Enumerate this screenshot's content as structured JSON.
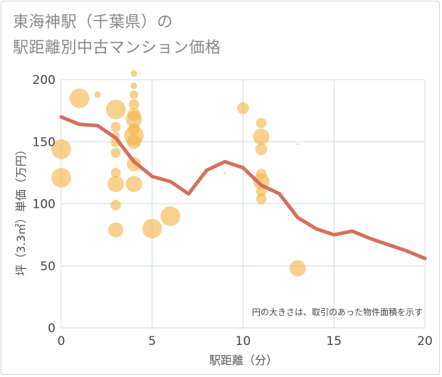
{
  "title_line1": "東海神駅（千葉県）の",
  "title_line2": "駅距離別中古マンション価格",
  "chart_data": {
    "type": "scatter",
    "title": "東海神駅（千葉県）の駅距離別中古マンション価格",
    "xlabel": "駅距離（分）",
    "ylabel": "坪（3.3㎡）単価（万円）",
    "xlim": [
      0,
      20
    ],
    "ylim": [
      0,
      200
    ],
    "x_ticks": [
      0,
      5,
      10,
      15,
      20
    ],
    "y_ticks": [
      0,
      50,
      100,
      150,
      200
    ],
    "grid": true,
    "note": "円の大きさは、取引のあった物件面積を示す",
    "colors": {
      "bubble": "#f5b343",
      "line": "#d4705a",
      "grid": "#cfdbe6"
    },
    "points": [
      {
        "x": 0,
        "y": 144,
        "size": 3
      },
      {
        "x": 0,
        "y": 121,
        "size": 3
      },
      {
        "x": 1,
        "y": 185,
        "size": 3
      },
      {
        "x": 2,
        "y": 188,
        "size": 1
      },
      {
        "x": 3,
        "y": 176,
        "size": 3
      },
      {
        "x": 3,
        "y": 162,
        "size": 1.5
      },
      {
        "x": 3,
        "y": 155,
        "size": 1.2
      },
      {
        "x": 3,
        "y": 150,
        "size": 1.6
      },
      {
        "x": 3,
        "y": 141,
        "size": 1.5
      },
      {
        "x": 3,
        "y": 125,
        "size": 1.5
      },
      {
        "x": 3,
        "y": 116,
        "size": 2.5
      },
      {
        "x": 3,
        "y": 99,
        "size": 1.6
      },
      {
        "x": 3,
        "y": 79,
        "size": 2.3
      },
      {
        "x": 4,
        "y": 205,
        "size": 1
      },
      {
        "x": 4,
        "y": 195,
        "size": 1
      },
      {
        "x": 4,
        "y": 188,
        "size": 1.3
      },
      {
        "x": 4,
        "y": 180,
        "size": 1.6
      },
      {
        "x": 4,
        "y": 172,
        "size": 2
      },
      {
        "x": 4,
        "y": 168,
        "size": 2.5
      },
      {
        "x": 4,
        "y": 160,
        "size": 1.8
      },
      {
        "x": 4,
        "y": 155,
        "size": 3
      },
      {
        "x": 4,
        "y": 150,
        "size": 2.2
      },
      {
        "x": 4,
        "y": 132,
        "size": 2.2
      },
      {
        "x": 4,
        "y": 116,
        "size": 2.5
      },
      {
        "x": 5,
        "y": 80,
        "size": 3
      },
      {
        "x": 6,
        "y": 90,
        "size": 3
      },
      {
        "x": 10,
        "y": 177,
        "size": 1.8
      },
      {
        "x": 11,
        "y": 165,
        "size": 1.6
      },
      {
        "x": 11,
        "y": 154,
        "size": 2.5
      },
      {
        "x": 11,
        "y": 144,
        "size": 1.8
      },
      {
        "x": 11,
        "y": 124,
        "size": 1.6
      },
      {
        "x": 11,
        "y": 118,
        "size": 2.5
      },
      {
        "x": 11,
        "y": 110,
        "size": 1.6
      },
      {
        "x": 11,
        "y": 104,
        "size": 1.6
      },
      {
        "x": 13,
        "y": 148,
        "size": 0.3
      },
      {
        "x": 13,
        "y": 48,
        "size": 2.5
      },
      {
        "x": 9,
        "y": 125,
        "size": 0.3
      }
    ],
    "trend_line": {
      "x": [
        0,
        1,
        2,
        3,
        4,
        5,
        6,
        7,
        8,
        9,
        10,
        11,
        12,
        13,
        14,
        15,
        16,
        17,
        18,
        19,
        20
      ],
      "y": [
        170,
        164,
        163,
        153,
        134,
        122,
        118,
        108,
        127,
        134,
        129,
        115,
        108,
        89,
        80,
        75,
        78,
        72,
        67,
        62,
        56
      ]
    }
  }
}
